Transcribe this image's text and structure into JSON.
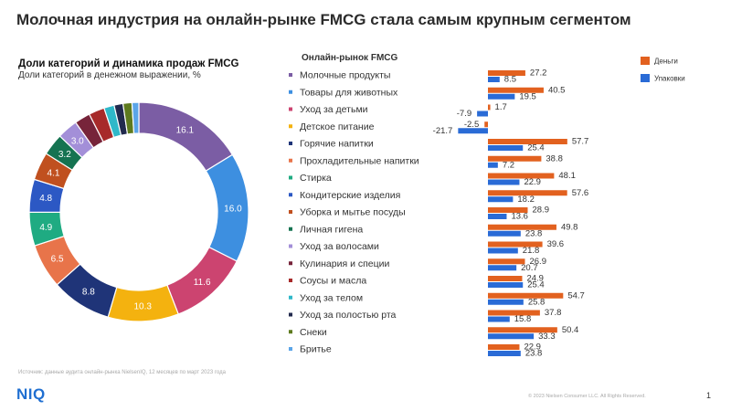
{
  "slide": {
    "title": "Молочная индустрия на онлайн-рынке FMCG стала самым крупным сегментом",
    "source": "Источник: данные аудита онлайн-рынка NielsenIQ, 12 месяцев по март 2023 года",
    "logo": "NIQ",
    "copyright": "© 2023 Nielsen Consumer LLC. All Rights Reserved.",
    "page_number": "1"
  },
  "colors": {
    "money": "#E2611F",
    "units": "#2A6BD6",
    "categories": [
      "#7B5DA4",
      "#3D8FE0",
      "#CC4470",
      "#F4B20F",
      "#1F3478",
      "#E8744A",
      "#1FAB82",
      "#2C58C4",
      "#C0501F",
      "#157351",
      "#A38FD8",
      "#77243A",
      "#A72A2A",
      "#2FB8C9",
      "#222A4E",
      "#5E7A1E",
      "#5BA5E8"
    ]
  },
  "chart_data": [
    {
      "type": "pie",
      "title": "Доли категорий и динамика продаж FMCG",
      "subtitle": "Доли категорий в денежном выражении, %",
      "labels": [
        "Молочные продукты",
        "Товары для животных",
        "Уход за детьми",
        "Детское питание",
        "Горячие напитки",
        "Прохладительные напитки",
        "Стирка",
        "Кондитерские изделия",
        "Уборка и мытье посуды",
        "Личная гигена",
        "Уход за волосами",
        "Кулинария и специи",
        "Соусы и масла",
        "Уход за телом",
        "Уход за полостью рта",
        "Снеки",
        "Бритье"
      ],
      "values": [
        16.1,
        16.0,
        11.6,
        10.3,
        8.8,
        6.5,
        4.9,
        4.8,
        4.1,
        3.2,
        3.0,
        2.3,
        2.3,
        1.5,
        1.3,
        1.3,
        1.0
      ],
      "data_labels": [
        "16.1",
        "16.0",
        "11.6",
        "10.3",
        "8.8",
        "6.5",
        "4.9",
        "4.8",
        "4.1",
        "3.2",
        "3.0",
        "",
        "",
        "",
        "",
        "",
        ""
      ]
    },
    {
      "type": "bar",
      "orientation": "horizontal",
      "category_header": "Онлайн-рынок FMCG",
      "categories": [
        "Молочные продукты",
        "Товары для животных",
        "Уход за детьми",
        "Детское питание",
        "Горячие напитки",
        "Прохладительные напитки",
        "Стирка",
        "Кондитерские изделия",
        "Уборка и мытье посуды",
        "Личная гигена",
        "Уход за волосами",
        "Кулинария и специи",
        "Соусы и масла",
        "Уход за телом",
        "Уход за полостью рта",
        "Снеки",
        "Бритье"
      ],
      "series": [
        {
          "name": "Деньги",
          "values": [
            27.2,
            40.5,
            1.7,
            -2.5,
            57.7,
            38.8,
            48.1,
            57.6,
            28.9,
            49.8,
            39.6,
            26.9,
            24.9,
            54.7,
            37.8,
            50.4,
            22.9
          ]
        },
        {
          "name": "Упаковки",
          "values": [
            8.5,
            19.5,
            -7.9,
            -21.7,
            25.4,
            7.2,
            22.9,
            18.2,
            13.6,
            23.8,
            21.8,
            20.7,
            25.4,
            25.8,
            15.8,
            33.3,
            23.8
          ]
        }
      ],
      "legend": "top-right"
    }
  ]
}
